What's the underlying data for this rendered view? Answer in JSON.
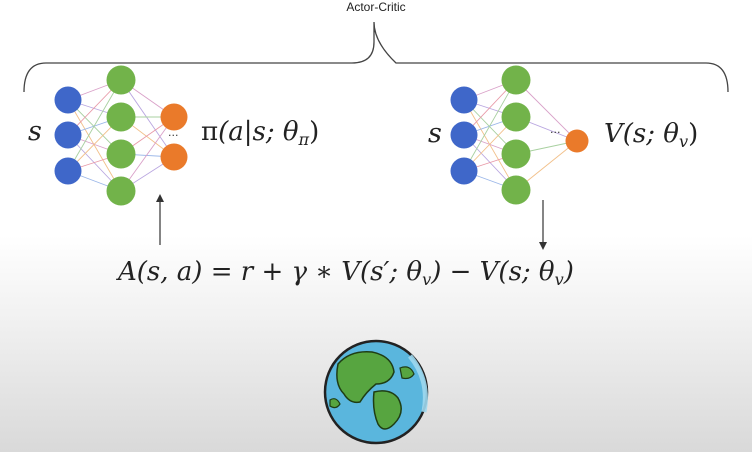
{
  "diagram": {
    "title": "Actor-Critic",
    "actor": {
      "input_label": "s",
      "output_pi": "π",
      "output_args": "(a|s; θ",
      "output_sub": "π",
      "output_close": ")",
      "ellipsis": "..."
    },
    "critic": {
      "input_label": "s",
      "output_v": "V",
      "output_args": "(s; θ",
      "output_sub": "v",
      "output_close": ")",
      "ellipsis": "..."
    },
    "advantage": {
      "lhs": "A(s, a) = r + γ ∗ V(s′; θ",
      "sub1": "v",
      "mid": ") − V(s; θ",
      "sub2": "v",
      "end": ")"
    }
  },
  "colors": {
    "input": "#3f67c9",
    "hidden": "#72b34a",
    "output": "#ea7a2a",
    "globe_ocean": "#5ab6dd",
    "globe_land": "#57a540"
  },
  "icons": [
    "globe-icon"
  ]
}
